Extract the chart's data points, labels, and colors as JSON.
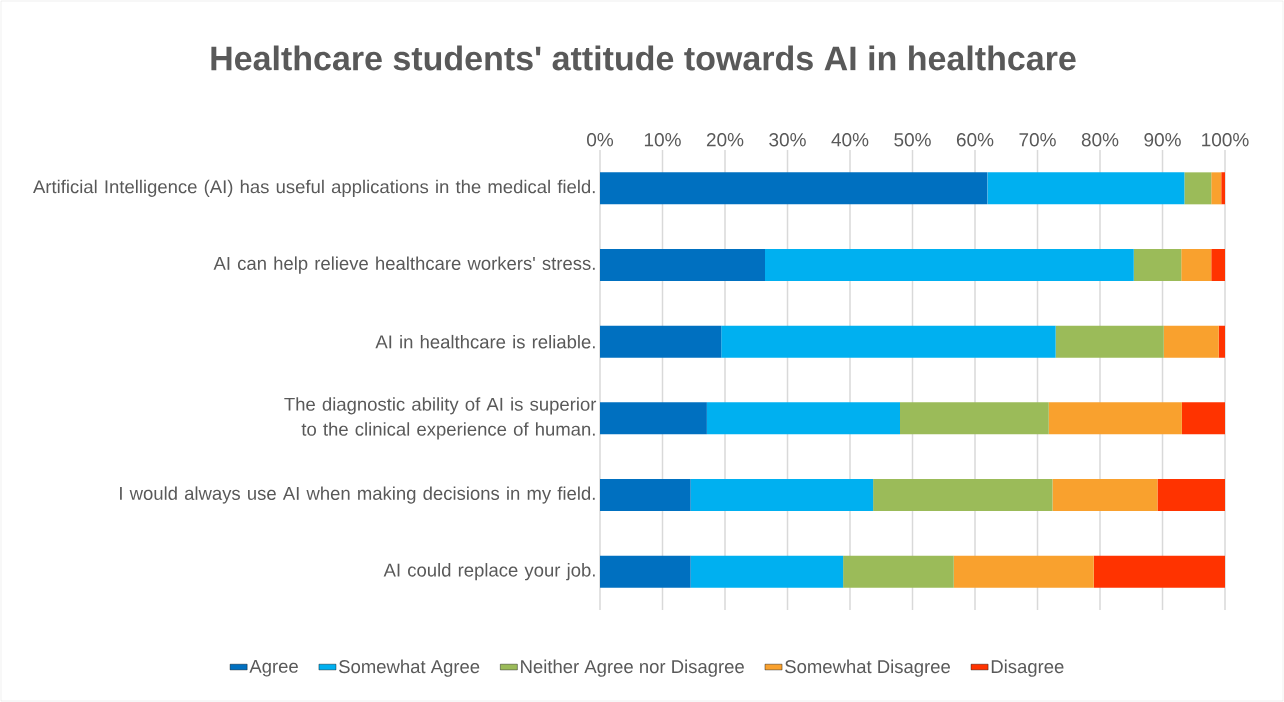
{
  "chart_data": {
    "type": "bar",
    "orientation": "horizontal",
    "stacked": true,
    "title": "Healthcare students' attitude towards AI in healthcare",
    "categories": [
      "Artificial Intelligence (AI) has useful applications in the medical field.",
      "AI can help relieve healthcare workers' stress.",
      "AI in healthcare is reliable.",
      "The diagnostic ability of AI is superior to the clinical experience of human.",
      "I would always use AI when making decisions in my field.",
      "AI could replace your job."
    ],
    "series": [
      {
        "name": "Agree",
        "color": "#0070c0",
        "values": [
          62.0,
          26.4,
          19.4,
          17.1,
          14.5,
          14.5
        ]
      },
      {
        "name": "Somewhat Agree",
        "color": "#00b0f0",
        "values": [
          31.5,
          59.0,
          53.5,
          30.9,
          29.2,
          24.4
        ]
      },
      {
        "name": "Neither Agree nor Disagree",
        "color": "#9bbb59",
        "values": [
          4.3,
          7.6,
          17.3,
          23.8,
          28.7,
          17.7
        ]
      },
      {
        "name": "Somewhat Disagree",
        "color": "#f9a12e",
        "values": [
          1.6,
          4.8,
          8.8,
          21.3,
          16.8,
          22.4
        ]
      },
      {
        "name": "Disagree",
        "color": "#ff3300",
        "values": [
          0.6,
          2.2,
          1.0,
          6.9,
          10.8,
          21.0
        ]
      }
    ],
    "xlim": [
      0,
      100
    ],
    "xticks": [
      {
        "value": 0,
        "label": "0%"
      },
      {
        "value": 10,
        "label": "10%"
      },
      {
        "value": 20,
        "label": "20%"
      },
      {
        "value": 30,
        "label": "30%"
      },
      {
        "value": 40,
        "label": "40%"
      },
      {
        "value": 50,
        "label": "50%"
      },
      {
        "value": 60,
        "label": "60%"
      },
      {
        "value": 70,
        "label": "70%"
      },
      {
        "value": 80,
        "label": "80%"
      },
      {
        "value": 90,
        "label": "90%"
      },
      {
        "value": 100,
        "label": "100%"
      }
    ],
    "grid": "x",
    "legend": "bottom"
  }
}
